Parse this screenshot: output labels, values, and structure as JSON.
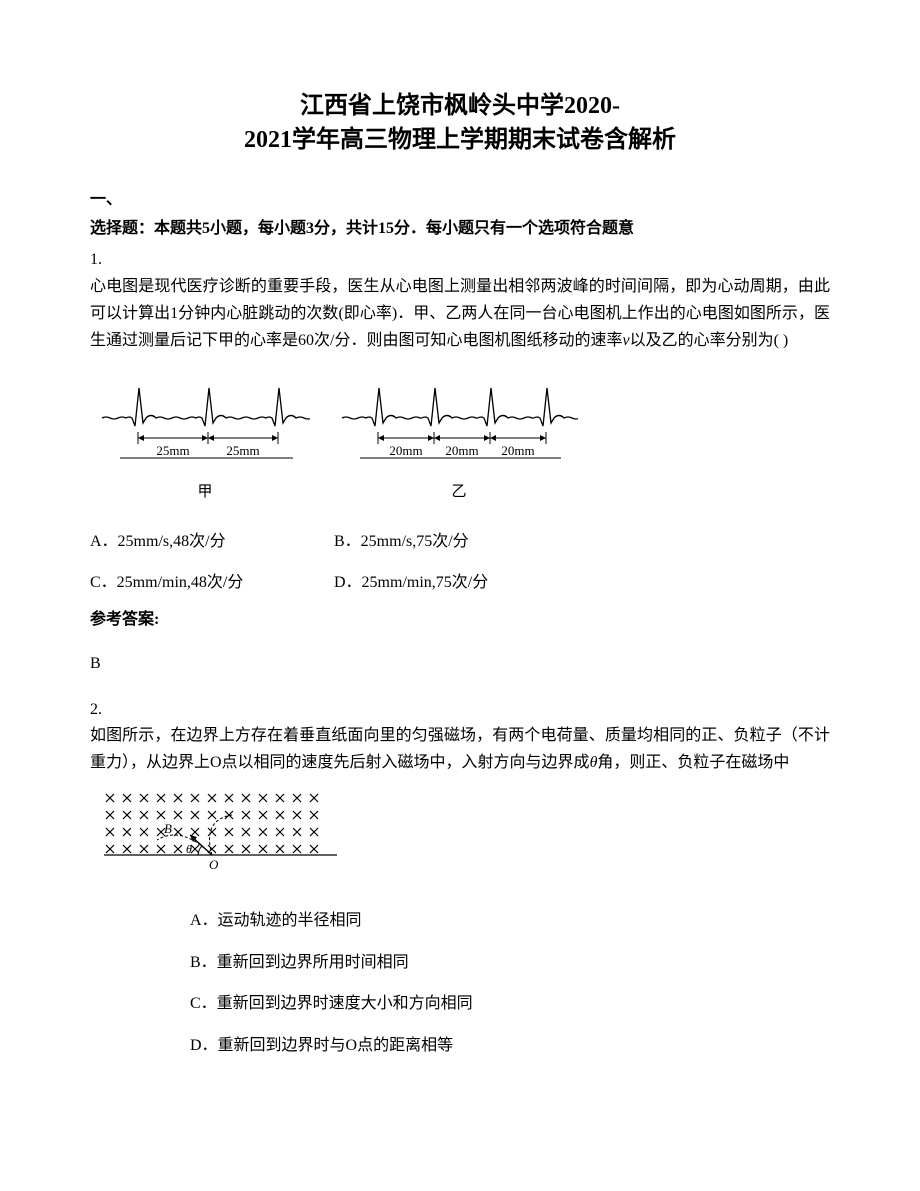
{
  "title_line1": "江西省上饶市枫岭头中学2020-",
  "title_line2": "2021学年高三物理上学期期末试卷含解析",
  "section1": {
    "label": "一、",
    "desc": "选择题：本题共5小题，每小题3分，共计15分．每小题只有一个选项符合题意"
  },
  "q1": {
    "num": "1.",
    "body_pre": "心电图是现代医疗诊断的重要手段，医生从心电图上测量出相邻两波峰的时间间隔，即为心动周期，由此可以计算出1分钟内心脏跳动的次数(即心率)．甲、乙两人在同一台心电图机上作出的心电图如图所示，医生通过测量后记下甲的心率是60次/分．则由图可知心电图机图纸移动的速率",
    "body_var": "v",
    "body_post": "以及乙的心率分别为(     )",
    "ecg": {
      "jia": {
        "segment_label": "25mm",
        "name": "甲",
        "segments": 2,
        "seg_width": 70
      },
      "yi": {
        "segment_label": "20mm",
        "name": "乙",
        "segments": 3,
        "seg_width": 56
      }
    },
    "options": {
      "A": "A．25mm/s,48次/分",
      "B": "B．25mm/s,75次/分",
      "C": "C．25mm/min,48次/分",
      "D": "D．25mm/min,75次/分"
    },
    "answer_heading": "参考答案:",
    "answer": "B"
  },
  "q2": {
    "num": "2.",
    "body_pre": "如图所示，在边界上方存在着垂直纸面向里的匀强磁场，有两个电荷量、质量均相同的正、负粒子（不计重力），从边界上O点以相同的速度先后射入磁场中，入射方向与边界成",
    "body_var": "θ",
    "body_post": "角，则正、负粒子在磁场中",
    "diagram": {
      "rows": 4,
      "cols": 13,
      "x_color": "#000000",
      "o_label": "O"
    },
    "options": {
      "A": "A．运动轨迹的半径相同",
      "B": "B．重新回到边界所用时间相同",
      "C": "C．重新回到边界时速度大小和方向相同",
      "D": "D．重新回到边界时与O点的距离相等"
    }
  },
  "colors": {
    "text": "#000000",
    "bg": "#ffffff",
    "stroke": "#000000"
  }
}
